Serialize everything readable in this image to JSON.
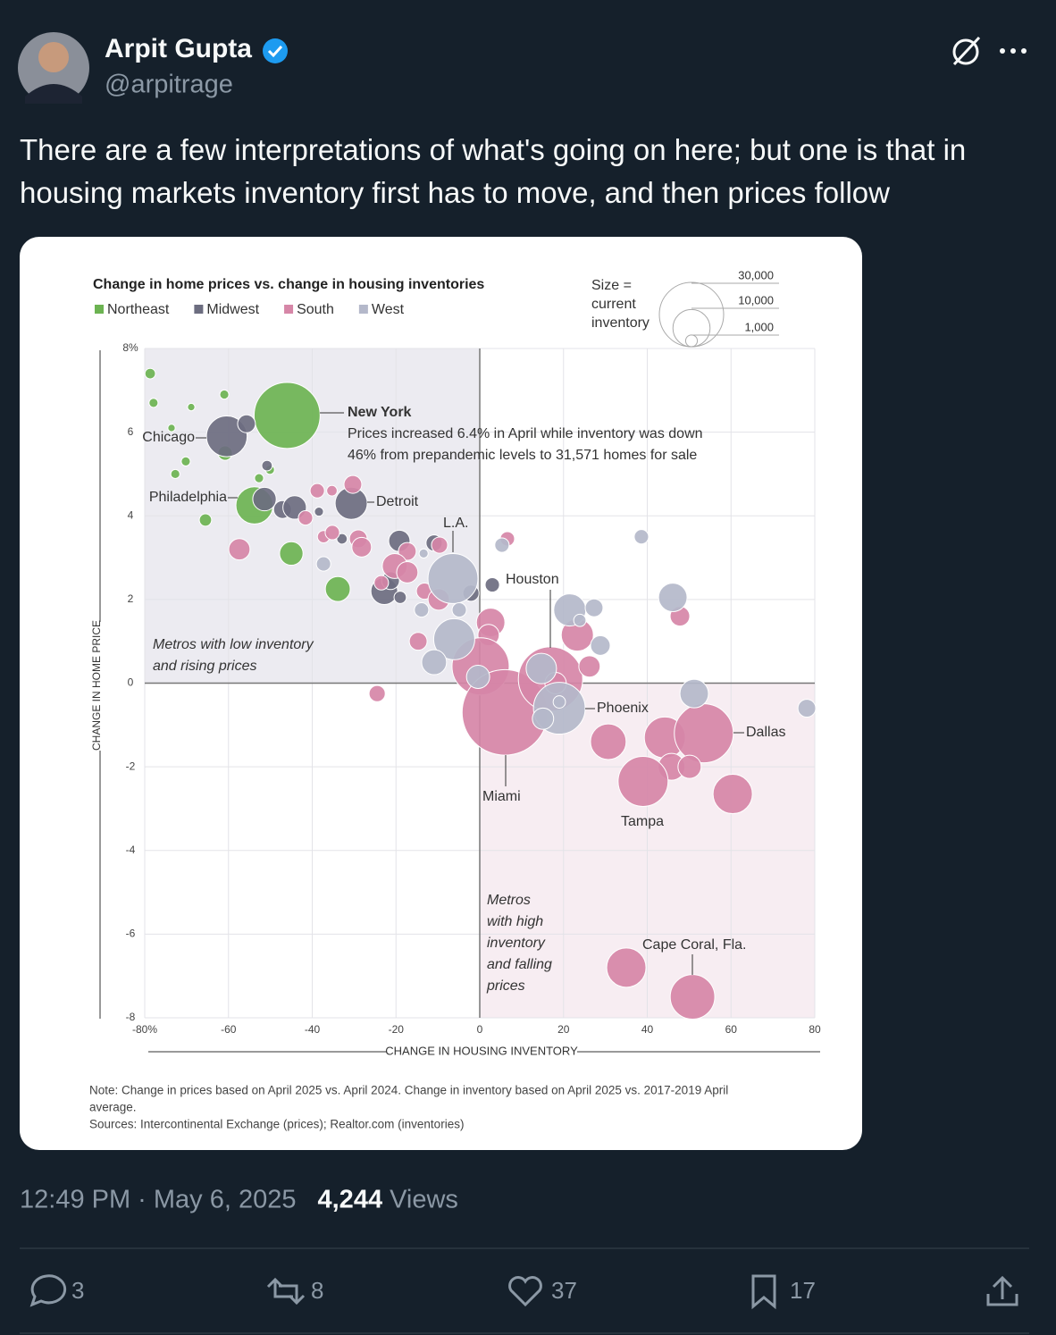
{
  "tweet": {
    "name": "Arpit Gupta",
    "handle": "@arpitrage",
    "text": "There are a few interpretations of what's going on here; but one is that in housing markets inventory first has to move, and then prices follow",
    "time": "12:49 PM · May 6, 2025",
    "views": "4,244",
    "views_label": "Views",
    "replies": 3,
    "reposts": 8,
    "likes": 37,
    "bookmarks": 17
  },
  "chart_data": {
    "type": "bubble",
    "title": "Change in home prices vs. change in housing inventories",
    "x_label": "CHANGE IN HOUSING INVENTORY",
    "y_label": "CHANGE IN HOME PRICE",
    "xlim": [
      -80,
      80
    ],
    "ylim": [
      -8,
      8
    ],
    "xticks": [
      {
        "value": -80,
        "label": "-80%"
      },
      -60,
      -40,
      -20,
      0,
      20,
      40,
      60,
      80
    ],
    "yticks": [
      -8,
      -6,
      -4,
      -2,
      0,
      2,
      4,
      6,
      {
        "value": 8,
        "label": "8%"
      }
    ],
    "grid": true,
    "legend": "top-left",
    "size_legend": {
      "lines": [
        "Size =",
        "current",
        "inventory"
      ],
      "ticks": [
        {
          "value": 30000,
          "label": "30,000"
        },
        {
          "value": 10000,
          "label": "10,000"
        },
        {
          "value": 1000,
          "label": "1,000"
        }
      ]
    },
    "series": [
      {
        "name": "Northeast",
        "color": "#6cb352",
        "x": [
          -78.7,
          -77.9,
          -68.9,
          -61,
          -73.6,
          -70.2,
          -72.7,
          -46,
          -60.8,
          -52.7,
          -50.1,
          -53.8,
          -65.5,
          -45,
          -33.9
        ],
        "values": [
          7.4,
          6.7,
          6.6,
          6.9,
          6.1,
          5.3,
          5.0,
          6.4,
          5.5,
          4.9,
          5.1,
          4.25,
          3.9,
          3.1,
          2.25
        ],
        "sizes": [
          800,
          600,
          400,
          600,
          400,
          600,
          600,
          31571,
          1500,
          600,
          600,
          10000,
          1100,
          4000,
          4500
        ]
      },
      {
        "name": "Midwest",
        "color": "#6c6d80",
        "x": [
          -60.4,
          -55.7,
          -50.8,
          -51.4,
          -47.1,
          -44.2,
          -38.4,
          -30.7,
          -32.9,
          -19.2,
          -10.9,
          -22.8,
          -21.3,
          -19,
          -2.1,
          3
        ],
        "values": [
          5.9,
          6.2,
          5.2,
          4.4,
          4.15,
          4.2,
          4.1,
          4.3,
          3.45,
          3.4,
          3.35,
          2.2,
          2.45,
          2.05,
          2.15,
          2.35
        ],
        "sizes": [
          12000,
          2300,
          800,
          4000,
          2300,
          4000,
          600,
          7500,
          800,
          3300,
          1900,
          5200,
          2300,
          1100,
          1900,
          1500
        ]
      },
      {
        "name": "South",
        "color": "#d686a7",
        "x": [
          -38.8,
          -35.3,
          -30.3,
          -41.6,
          -57.4,
          -37.3,
          -35.2,
          -29,
          -28.2,
          -17.3,
          -20.3,
          -17.3,
          -9.6,
          -13.2,
          -9.8,
          -23.5,
          6.6,
          -14.7,
          -24.5,
          2.6,
          2.1,
          0.2,
          6,
          16.9,
          23.3,
          26.2,
          18.1,
          30.7,
          44.2,
          53.5,
          45.8,
          50.1,
          39,
          60.4,
          47.8,
          35,
          50.8
        ],
        "values": [
          4.6,
          4.6,
          4.75,
          3.95,
          3.2,
          3.5,
          3.6,
          3.45,
          3.25,
          3.15,
          2.8,
          2.65,
          3.3,
          2.2,
          2.0,
          2.4,
          3.45,
          1.0,
          -0.25,
          1.45,
          1.15,
          0.4,
          -0.7,
          0.1,
          1.15,
          0.4,
          0,
          -1.4,
          -1.3,
          -1.2,
          -2.0,
          -2.0,
          -2.35,
          -2.65,
          1.6,
          -6.8,
          -7.5
        ],
        "sizes": [
          1500,
          800,
          2300,
          1500,
          3300,
          1100,
          1500,
          2300,
          2800,
          2300,
          4500,
          3300,
          1900,
          1900,
          3300,
          1500,
          1500,
          2300,
          1900,
          5900,
          3300,
          23700,
          53000,
          30000,
          7500,
          3300,
          3300,
          9200,
          12200,
          25200,
          5200,
          3900,
          18100,
          11200,
          2800,
          11200,
          14400
        ]
      },
      {
        "name": "West",
        "color": "#b4b8ca",
        "x": [
          -37.3,
          -13.4,
          -6.4,
          -4.9,
          -13.9,
          -6.1,
          -10.9,
          -0.4,
          5.3,
          38.6,
          21.5,
          23.9,
          27.3,
          28.8,
          46.1,
          14.7,
          19,
          15.1,
          19,
          51.2,
          78.1
        ],
        "values": [
          2.85,
          3.1,
          2.5,
          1.75,
          1.75,
          1.05,
          0.5,
          0.15,
          3.3,
          3.5,
          1.75,
          1.5,
          1.8,
          0.9,
          2.05,
          0.35,
          -0.6,
          -0.85,
          -0.45,
          -0.25,
          -0.6
        ],
        "sizes": [
          1500,
          600,
          18100,
          1500,
          1500,
          12200,
          4500,
          3900,
          1500,
          1500,
          7500,
          1100,
          2300,
          2800,
          5900,
          6700,
          19400,
          3300,
          1100,
          5900,
          2300
        ]
      }
    ],
    "annotations": [
      {
        "lines": [
          "New York"
        ]
      },
      {
        "lines": [
          "Prices increased 6.4% in April while inventory was down",
          "46% from prepandemic levels to 31,571 homes for sale"
        ]
      },
      {
        "lines": [
          "Chicago"
        ]
      },
      {
        "lines": [
          "Philadelphia"
        ]
      },
      {
        "lines": [
          "Detroit"
        ]
      },
      {
        "lines": [
          "L.A."
        ]
      },
      {
        "lines": [
          "Houston"
        ]
      },
      {
        "lines": [
          "Phoenix"
        ]
      },
      {
        "lines": [
          "Dallas"
        ]
      },
      {
        "lines": [
          "Miami"
        ]
      },
      {
        "lines": [
          "Tampa"
        ]
      },
      {
        "lines": [
          "Cape Coral, Fla."
        ]
      },
      {
        "lines": [
          "Metros with low inventory",
          "and rising prices"
        ]
      },
      {
        "lines": [
          "Metros",
          "with high",
          "inventory",
          "and falling",
          "prices"
        ]
      }
    ],
    "note_lines": [
      "Note: Change in prices based on April 2025 vs. April 2024. Change in inventory based on April 2025 vs. 2017-2019 April",
      "average.",
      "Sources: Intercontinental Exchange (prices); Realtor.com (inventories)"
    ]
  }
}
